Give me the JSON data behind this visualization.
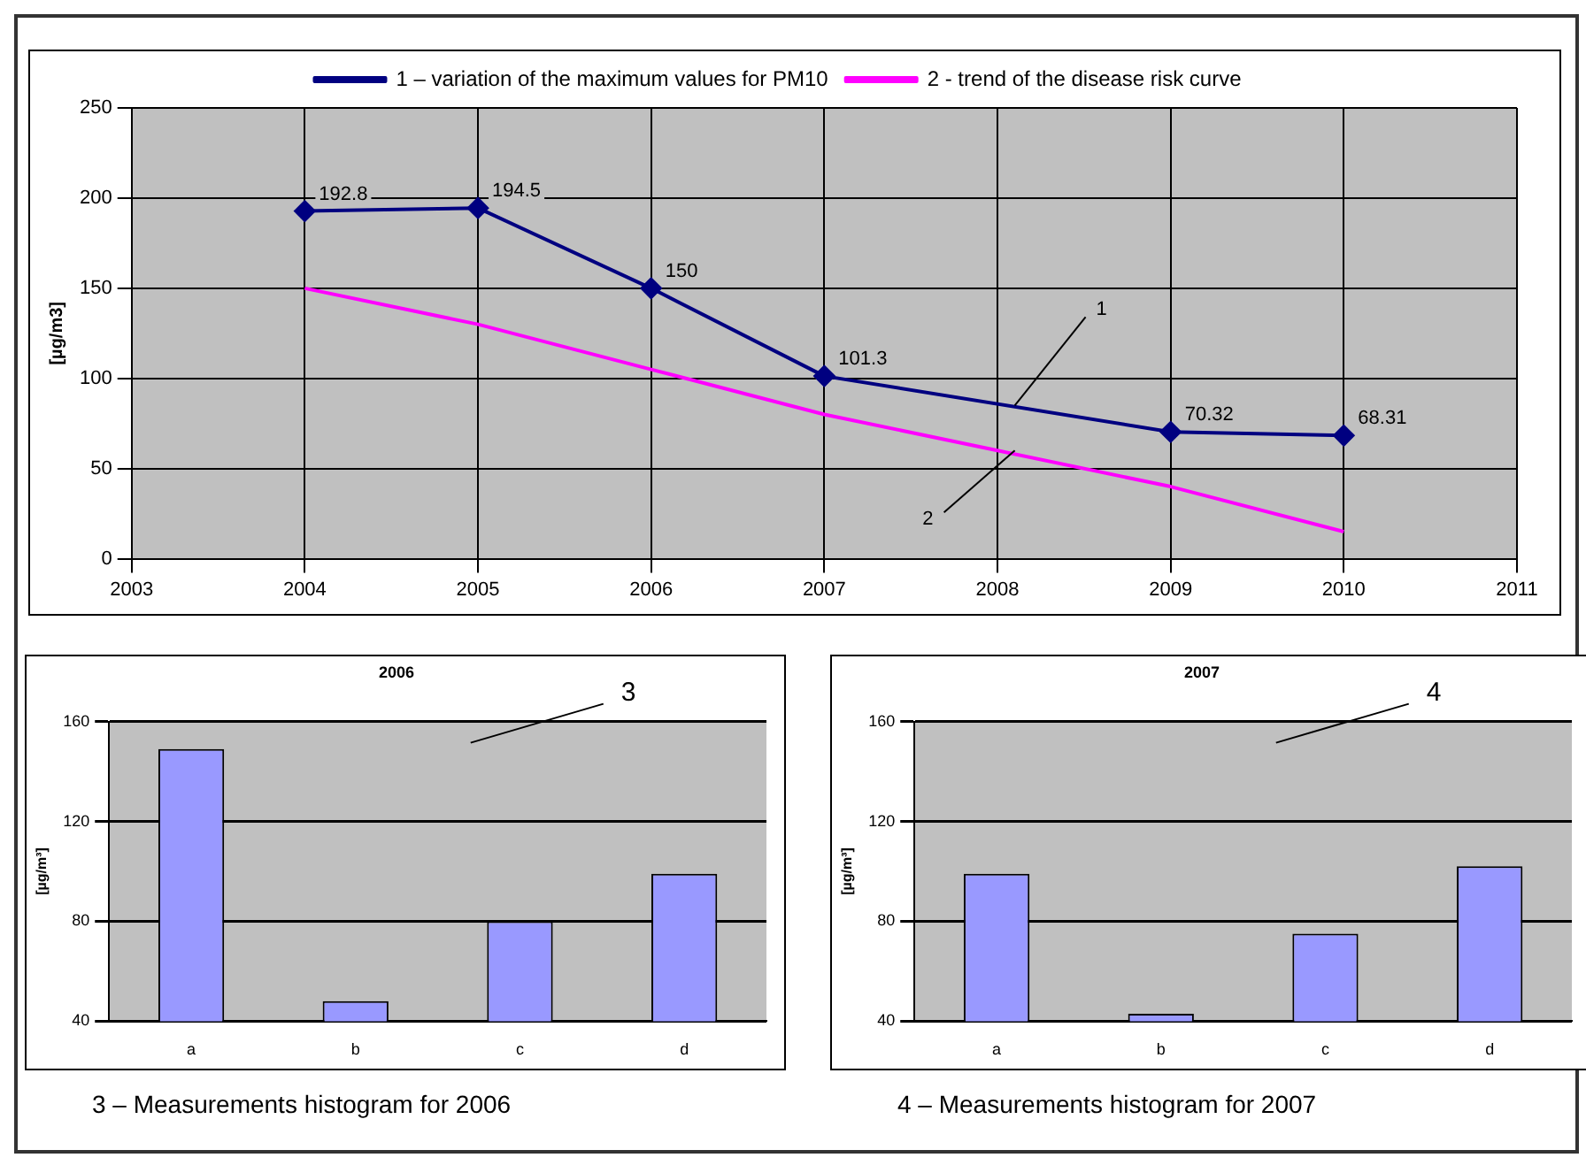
{
  "chart_data": [
    {
      "type": "line",
      "ylabel": "[µg/m3]",
      "xlim": [
        2003,
        2011
      ],
      "xticks": [
        2003,
        2004,
        2005,
        2006,
        2007,
        2008,
        2009,
        2010,
        2011
      ],
      "ylim": [
        0,
        250
      ],
      "yticks": [
        0,
        50,
        100,
        150,
        200,
        250
      ],
      "grid": true,
      "legend": "top",
      "annotations": [
        {
          "text": "1",
          "x": 2008.1,
          "y": 85
        },
        {
          "text": "2",
          "x": 2008.1,
          "y": 60
        }
      ],
      "series": [
        {
          "name": "1 – variation of the maximum values for PM10",
          "color": "#000080",
          "marker": "diamond",
          "x": [
            2004,
            2005,
            2006,
            2007,
            2009,
            2010
          ],
          "values": [
            192.8,
            194.5,
            150,
            101.3,
            70.32,
            68.31
          ],
          "value_labels": [
            "192.8",
            "194.5",
            "150",
            "101.3",
            "70.32",
            "68.31"
          ]
        },
        {
          "name": "2 - trend of the disease risk curve",
          "color": "#ff00ff",
          "marker": "none",
          "x": [
            2004,
            2005,
            2006,
            2007,
            2008,
            2009,
            2010
          ],
          "values": [
            150,
            130,
            105,
            80,
            60,
            40,
            15
          ]
        }
      ]
    },
    {
      "type": "bar",
      "title": "2006",
      "ylabel": "[µg/m³]",
      "categories": [
        "a",
        "b",
        "c",
        "d"
      ],
      "values": [
        149,
        48,
        80,
        99
      ],
      "color": "#9999ff",
      "ylim": [
        40,
        160
      ],
      "yticks": [
        40,
        80,
        120,
        160
      ],
      "grid": "y",
      "annotations": [
        "3",
        "3 – Measurements histogram for 2006"
      ]
    },
    {
      "type": "bar",
      "title": "2007",
      "ylabel": "[µg/m³]",
      "categories": [
        "a",
        "b",
        "c",
        "d"
      ],
      "values": [
        99,
        43,
        75,
        102
      ],
      "color": "#9999ff",
      "ylim": [
        40,
        160
      ],
      "yticks": [
        40,
        80,
        120,
        160
      ],
      "grid": "y",
      "annotations": [
        "4",
        "4 – Measurements histogram for 2007"
      ]
    }
  ]
}
